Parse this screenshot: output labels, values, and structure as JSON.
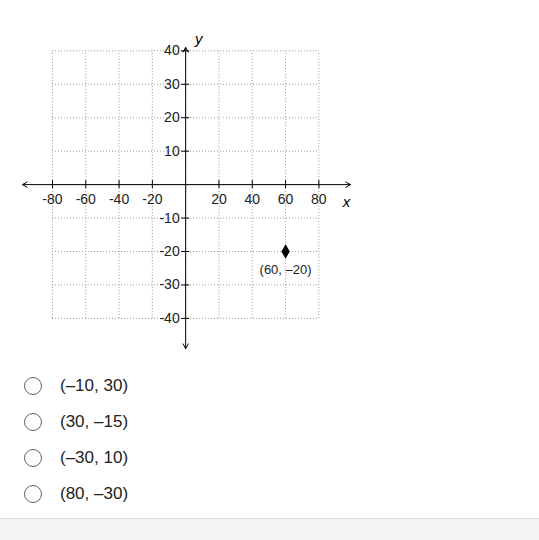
{
  "chart_data": {
    "type": "scatter",
    "x": [
      60
    ],
    "y": [
      -20
    ],
    "point_labels": [
      "(60, –20)"
    ],
    "color": "#000000",
    "marker": "diamond",
    "xlabel": "x",
    "ylabel": "y",
    "xlim": [
      -98,
      99
    ],
    "ylim": [
      -49,
      41
    ],
    "xticks": [
      -80,
      -60,
      -40,
      -20,
      20,
      40,
      60,
      80
    ],
    "yticks": [
      -40,
      -30,
      -20,
      -10,
      10,
      20,
      30,
      40
    ],
    "grid": true
  },
  "choices": [
    "(–10, 30)",
    "(30, –15)",
    "(–30, 10)",
    "(80, –30)"
  ]
}
